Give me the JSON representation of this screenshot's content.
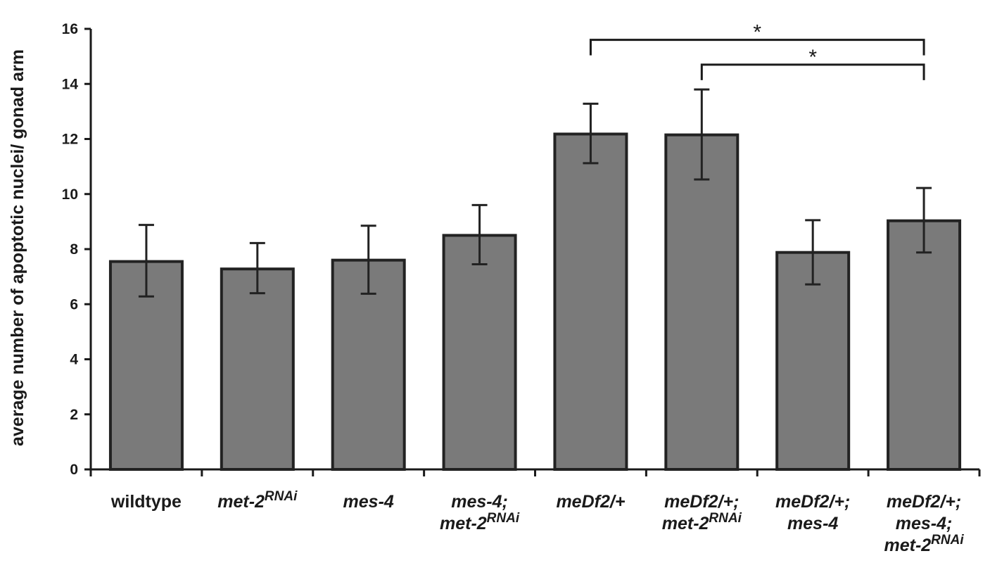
{
  "chart_data": {
    "type": "bar",
    "title": "",
    "xlabel": "",
    "ylabel": "average number of apoptotic nuclei/ gonad arm",
    "ylim": [
      0,
      16
    ],
    "yticks": [
      "0",
      "2",
      "4",
      "6",
      "8",
      "10",
      "12",
      "14",
      "16"
    ],
    "grid": false,
    "bar_color": "#7a7a7a",
    "edge_color": "#222222",
    "categories": [
      {
        "lines": [
          [
            {
              "t": "wildtype",
              "i": false
            }
          ]
        ]
      },
      {
        "lines": [
          [
            {
              "t": "met-2",
              "i": true
            },
            {
              "t": "RNAi",
              "i": true,
              "sup": true
            }
          ]
        ]
      },
      {
        "lines": [
          [
            {
              "t": "mes-4",
              "i": true
            }
          ]
        ]
      },
      {
        "lines": [
          [
            {
              "t": "mes-4;",
              "i": true
            }
          ],
          [
            {
              "t": "met-2",
              "i": true
            },
            {
              "t": "RNAi",
              "i": true,
              "sup": true
            }
          ]
        ]
      },
      {
        "lines": [
          [
            {
              "t": "meDf2/+",
              "i": true
            }
          ]
        ]
      },
      {
        "lines": [
          [
            {
              "t": "meDf2/+;",
              "i": true
            }
          ],
          [
            {
              "t": "met-2",
              "i": true
            },
            {
              "t": "RNAi",
              "i": true,
              "sup": true
            }
          ]
        ]
      },
      {
        "lines": [
          [
            {
              "t": "meDf2/+;",
              "i": true
            }
          ],
          [
            {
              "t": "mes-4",
              "i": true
            }
          ]
        ]
      },
      {
        "lines": [
          [
            {
              "t": "meDf2/+;",
              "i": true
            }
          ],
          [
            {
              "t": "mes-4;",
              "i": true
            }
          ],
          [
            {
              "t": "met-2",
              "i": true
            },
            {
              "t": "RNAi",
              "i": true,
              "sup": true
            }
          ]
        ]
      }
    ],
    "values": [
      7.55,
      7.28,
      7.6,
      8.5,
      12.18,
      12.15,
      7.88,
      9.03
    ],
    "error_low": [
      6.28,
      6.4,
      6.38,
      7.45,
      11.12,
      10.53,
      6.72,
      7.88
    ],
    "error_high": [
      8.88,
      8.22,
      8.85,
      9.6,
      13.28,
      13.8,
      9.05,
      10.22
    ],
    "significance": [
      {
        "from": 4,
        "to": 7,
        "y": 15.6,
        "label": "*"
      },
      {
        "from": 5,
        "to": 7,
        "y": 14.7,
        "label": "*"
      }
    ]
  }
}
